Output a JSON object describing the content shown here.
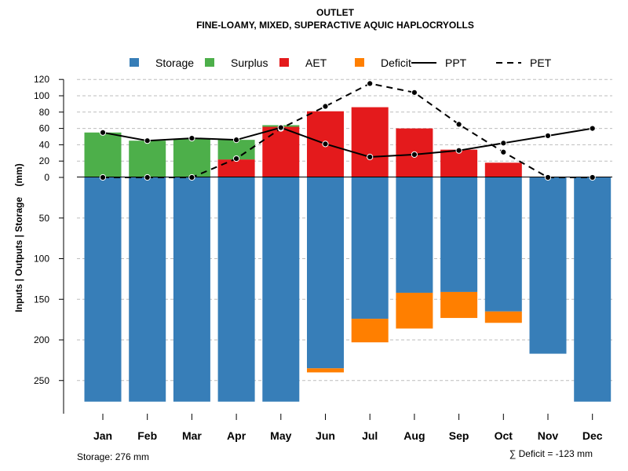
{
  "chart_data": {
    "type": "bar",
    "title": "OUTLET",
    "subtitle": "FINE-LOAMY, MIXED, SUPERACTIVE AQUIC HAPLOCRYOLLS",
    "ylabel": "Inputs | Outputs | Storage    (mm)",
    "categories": [
      "Jan",
      "Feb",
      "Mar",
      "Apr",
      "May",
      "Jun",
      "Jul",
      "Aug",
      "Sep",
      "Oct",
      "Nov",
      "Dec"
    ],
    "y_ticks_upper": [
      "120",
      "100",
      "80",
      "60",
      "40",
      "20",
      "0"
    ],
    "y_ticks_lower": [
      "50",
      "100",
      "150",
      "200",
      "250"
    ],
    "ylim": [
      -276,
      120
    ],
    "legend_position": "top",
    "legend": [
      {
        "label": "Storage",
        "kind": "box",
        "color": "#377EB8"
      },
      {
        "label": "Surplus",
        "kind": "box",
        "color": "#4DAF4A"
      },
      {
        "label": "AET",
        "kind": "box",
        "color": "#E41A1C"
      },
      {
        "label": "Deficit",
        "kind": "box",
        "color": "#FF7F00"
      },
      {
        "label": "PPT",
        "kind": "solid-line",
        "color": "#000000"
      },
      {
        "label": "PET",
        "kind": "dashed-line",
        "color": "#000000"
      }
    ],
    "series": [
      {
        "name": "AET",
        "color": "#E41A1C",
        "values": [
          0,
          0,
          0,
          22,
          62,
          81,
          86,
          60,
          34,
          18,
          0,
          0
        ]
      },
      {
        "name": "Surplus",
        "color": "#4DAF4A",
        "values": [
          55,
          45,
          47,
          24,
          2,
          0,
          0,
          0,
          0,
          0,
          0,
          0
        ]
      },
      {
        "name": "Storage",
        "color": "#377EB8",
        "values": [
          276,
          276,
          276,
          276,
          276,
          235,
          174,
          142,
          141,
          165,
          217,
          276
        ]
      },
      {
        "name": "Deficit",
        "color": "#FF7F00",
        "values": [
          0,
          0,
          0,
          0,
          0,
          5,
          29,
          44,
          32,
          14,
          0,
          0
        ]
      },
      {
        "name": "PPT",
        "color": "#000000",
        "values": [
          55,
          45,
          48,
          46,
          61,
          41,
          25,
          28,
          33,
          42,
          51,
          60
        ]
      },
      {
        "name": "PET",
        "color": "#000000",
        "values": [
          0,
          0,
          0,
          23,
          60,
          87,
          115,
          104,
          65,
          31,
          0,
          0
        ]
      }
    ],
    "storage_note": "Storage: 276 mm",
    "deficit_note": "∑ Deficit = -123 mm"
  }
}
